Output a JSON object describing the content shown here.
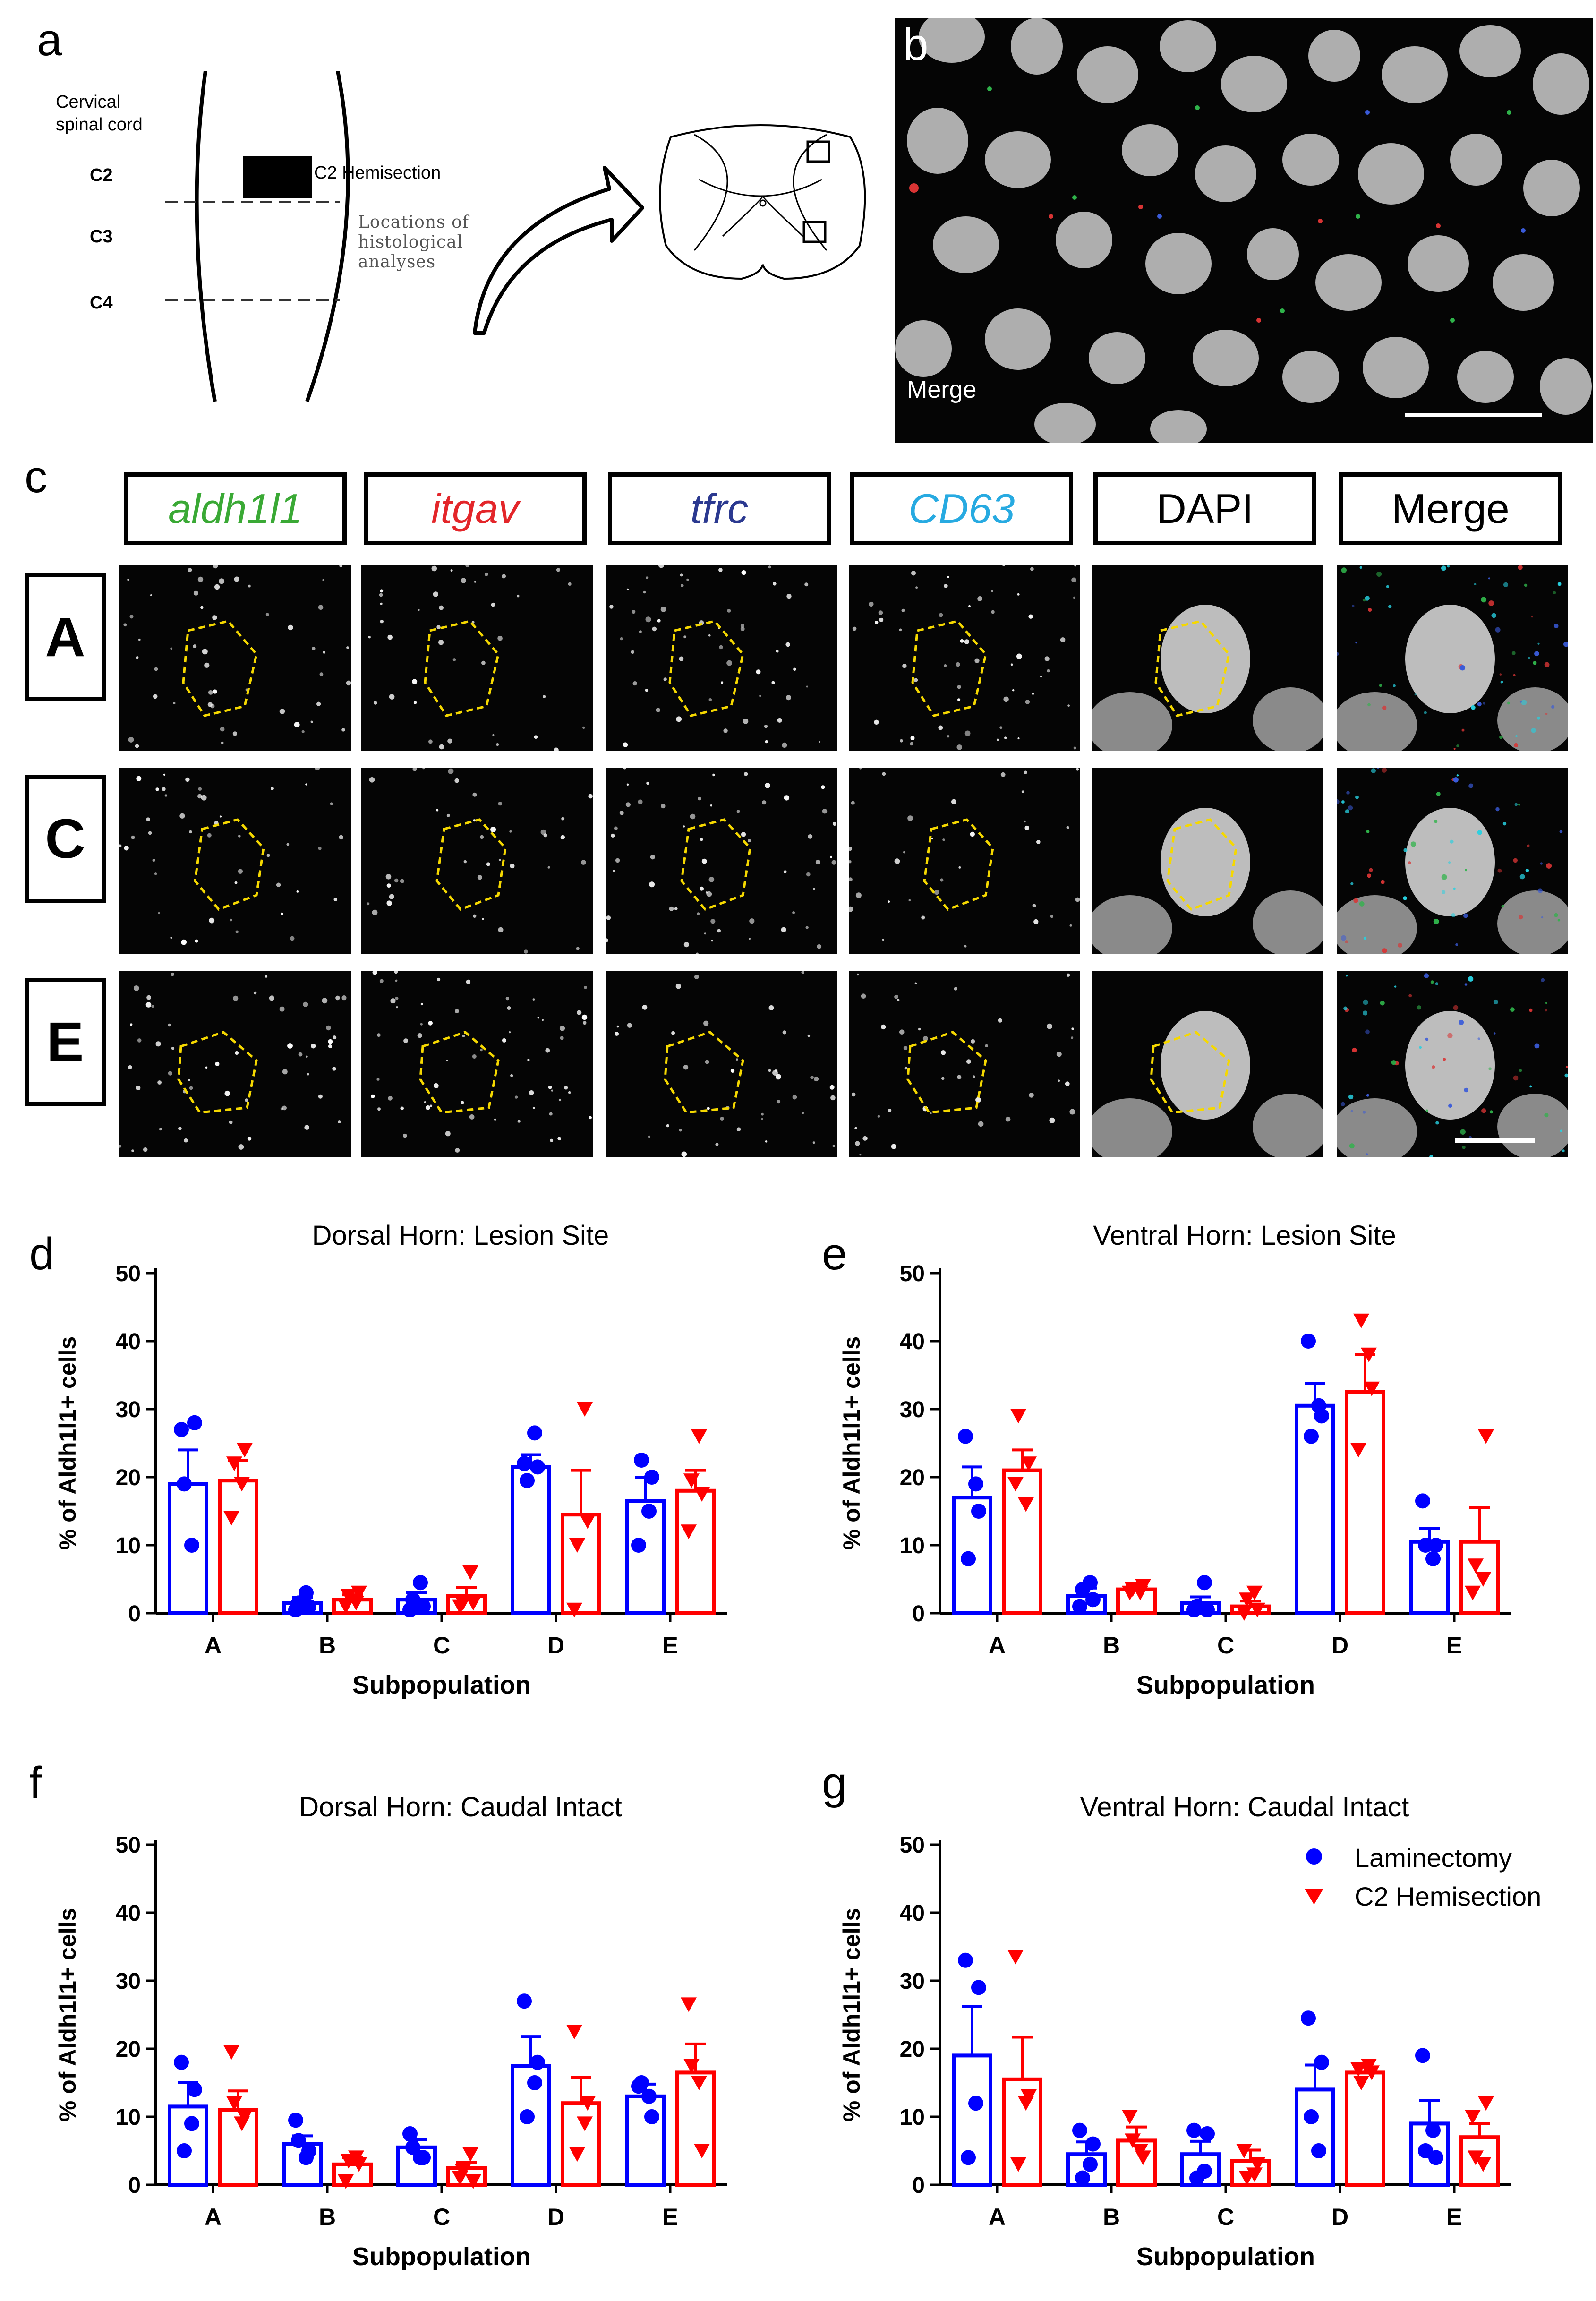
{
  "panel_labels": {
    "a": "a",
    "b": "b",
    "c": "c",
    "d": "d",
    "e": "e",
    "f": "f",
    "g": "g"
  },
  "panel_a": {
    "region_label": "Cervical spinal cord",
    "levels": [
      "C2",
      "C3",
      "C4"
    ],
    "hemisection_label": "C2 Hemisection",
    "locations_label": "Locations of histological analyses"
  },
  "panel_b": {
    "label": "Merge"
  },
  "panel_c": {
    "channels": [
      {
        "label": "aldh1l1",
        "color": "#3aa935",
        "italic": true
      },
      {
        "label": "itgav",
        "color": "#e3262a",
        "italic": true
      },
      {
        "label": "tfrc",
        "color": "#2b3990",
        "italic": true
      },
      {
        "label": "CD63",
        "color": "#27aae1",
        "italic": true
      },
      {
        "label": "DAPI",
        "color": "#000000",
        "italic": false
      },
      {
        "label": "Merge",
        "color": "#000000",
        "italic": false
      }
    ],
    "rows": [
      "A",
      "C",
      "E"
    ]
  },
  "colors": {
    "laminectomy": "#0000ff",
    "hemisection": "#ff0000",
    "outline": "#f5d800"
  },
  "legend": {
    "laminectomy": "Laminectomy",
    "hemisection": "C2 Hemisection"
  },
  "chart_data": [
    {
      "id": "d",
      "type": "bar",
      "title": "Dorsal Horn: Lesion Site",
      "xlabel": "Subpopulation",
      "ylabel": "% of Aldh1l1+ cells",
      "categories": [
        "A",
        "B",
        "C",
        "D",
        "E"
      ],
      "ylim": [
        0,
        50
      ],
      "yticks": [
        0,
        10,
        20,
        30,
        40,
        50
      ],
      "series": [
        {
          "name": "Laminectomy",
          "values": [
            19,
            1.5,
            2,
            21.5,
            16.5
          ],
          "sem": [
            5,
            0.8,
            1,
            1.8,
            3.5
          ],
          "points": [
            [
              27,
              28,
              19,
              10
            ],
            [
              0.5,
              1,
              1.5,
              3
            ],
            [
              0.5,
              1,
              2,
              4.5
            ],
            [
              22,
              21.5,
              19.5,
              26.5
            ],
            [
              10,
              20,
              22.5,
              15
            ]
          ]
        },
        {
          "name": "C2 Hemisection",
          "values": [
            19.5,
            2,
            2.5,
            14.5,
            18
          ],
          "sem": [
            3,
            0.7,
            1.3,
            6.5,
            3
          ],
          "points": [
            [
              14,
              24,
              22,
              19
            ],
            [
              1,
              3,
              2.5,
              1.5
            ],
            [
              1,
              1.5,
              1.5,
              6
            ]
          ],
          "_": "",
          "points_extra": [
            [
              0.5,
              13.5,
              10,
              30
            ]
          ],
          "points_E": [
            [
              12,
              17.5,
              19.5,
              26
            ]
          ]
        }
      ]
    },
    {
      "id": "e",
      "type": "bar",
      "title": "Ventral Horn: Lesion Site",
      "xlabel": "Subpopulation",
      "ylabel": "% of Aldh1l1+ cells",
      "categories": [
        "A",
        "B",
        "C",
        "D",
        "E"
      ],
      "ylim": [
        0,
        50
      ],
      "yticks": [
        0,
        10,
        20,
        30,
        40,
        50
      ],
      "series": [
        {
          "name": "Laminectomy",
          "values": [
            17,
            2.5,
            1.5,
            30.5,
            10.5
          ],
          "sem": [
            4.5,
            1.2,
            0.9,
            3.3,
            2
          ],
          "points": [
            [
              26,
              15,
              8,
              19
            ],
            [
              1,
              2,
              3.5,
              4.5
            ],
            [
              0.5,
              0.5,
              1,
              4.5
            ],
            [
              40,
              29,
              26,
              30.5
            ],
            [
              16.5,
              10,
              10,
              8
            ]
          ]
        },
        {
          "name": "C2 Hemisection",
          "values": [
            21,
            3.5,
            1,
            32.5,
            10.5
          ],
          "sem": [
            3,
            0.6,
            0.8,
            5.5,
            5
          ],
          "points": [
            [
              19,
              22,
              29,
              16
            ],
            [
              3,
              4,
              3.5,
              3
            ],
            [
              0,
              0.5,
              2,
              3
            ],
            [
              24,
              33,
              43,
              38
            ],
            [
              3,
              26,
              7,
              5
            ]
          ]
        }
      ]
    },
    {
      "id": "f",
      "type": "bar",
      "title": "Dorsal Horn: Caudal Intact",
      "xlabel": "Subpopulation",
      "ylabel": "% of Aldh1l1+ cells",
      "categories": [
        "A",
        "B",
        "C",
        "D",
        "E"
      ],
      "ylim": [
        0,
        50
      ],
      "yticks": [
        0,
        10,
        20,
        30,
        40,
        50
      ],
      "series": [
        {
          "name": "Laminectomy",
          "values": [
            11.5,
            6,
            5.5,
            17.5,
            13
          ],
          "sem": [
            3.5,
            1.2,
            1.1,
            4.3,
            1.8
          ],
          "points": [
            [
              18,
              14,
              5,
              9
            ],
            [
              9.5,
              5,
              6.5,
              4
            ],
            [
              7.5,
              4,
              5.5,
              4
            ],
            [
              27,
              18,
              10,
              15
            ],
            [
              14.5,
              10,
              15,
              13
            ]
          ]
        },
        {
          "name": "C2 Hemisection",
          "values": [
            11,
            3,
            2.5,
            12,
            16.5
          ],
          "sem": [
            2.8,
            1,
            0.8,
            3.8,
            4.2
          ],
          "points": [
            [
              19.5,
              10,
              12,
              9
            ],
            [
              0.5,
              3,
              3.5,
              4
            ],
            [
              1,
              0.5,
              2,
              4.5
            ],
            [
              22.5,
              12,
              4.5,
              9
            ],
            [
              26.5,
              5,
              17.5,
              15
            ]
          ]
        }
      ]
    },
    {
      "id": "g",
      "type": "bar",
      "title": "Ventral Horn: Caudal Intact",
      "xlabel": "Subpopulation",
      "ylabel": "% of Aldh1l1+ cells",
      "categories": [
        "A",
        "B",
        "C",
        "D",
        "E"
      ],
      "ylim": [
        0,
        50
      ],
      "yticks": [
        0,
        10,
        20,
        30,
        40,
        50
      ],
      "series": [
        {
          "name": "Laminectomy",
          "values": [
            19,
            4.5,
            4.5,
            14,
            9
          ],
          "sem": [
            7.2,
            1.8,
            1.9,
            3.6,
            3.4
          ],
          "points": [
            [
              33,
              29,
              4,
              12
            ],
            [
              8,
              6,
              1,
              3
            ],
            [
              8,
              7.5,
              1,
              2
            ],
            [
              24.5,
              18,
              10,
              5
            ],
            [
              19,
              4,
              5,
              8
            ]
          ]
        },
        {
          "name": "C2 Hemisection",
          "values": [
            15.5,
            6.5,
            3.5,
            16.5,
            7
          ],
          "sem": [
            6.2,
            2,
            1.6,
            0.8,
            2
          ],
          "points": [
            [
              33.5,
              13,
              3,
              12
            ],
            [
              10,
              4,
              6.5,
              5
            ],
            [
              5,
              3,
              1,
              1.5
            ],
            [
              17,
              16.5,
              15,
              17.5
            ],
            [
              10,
              12,
              4,
              3
            ]
          ]
        }
      ]
    }
  ]
}
